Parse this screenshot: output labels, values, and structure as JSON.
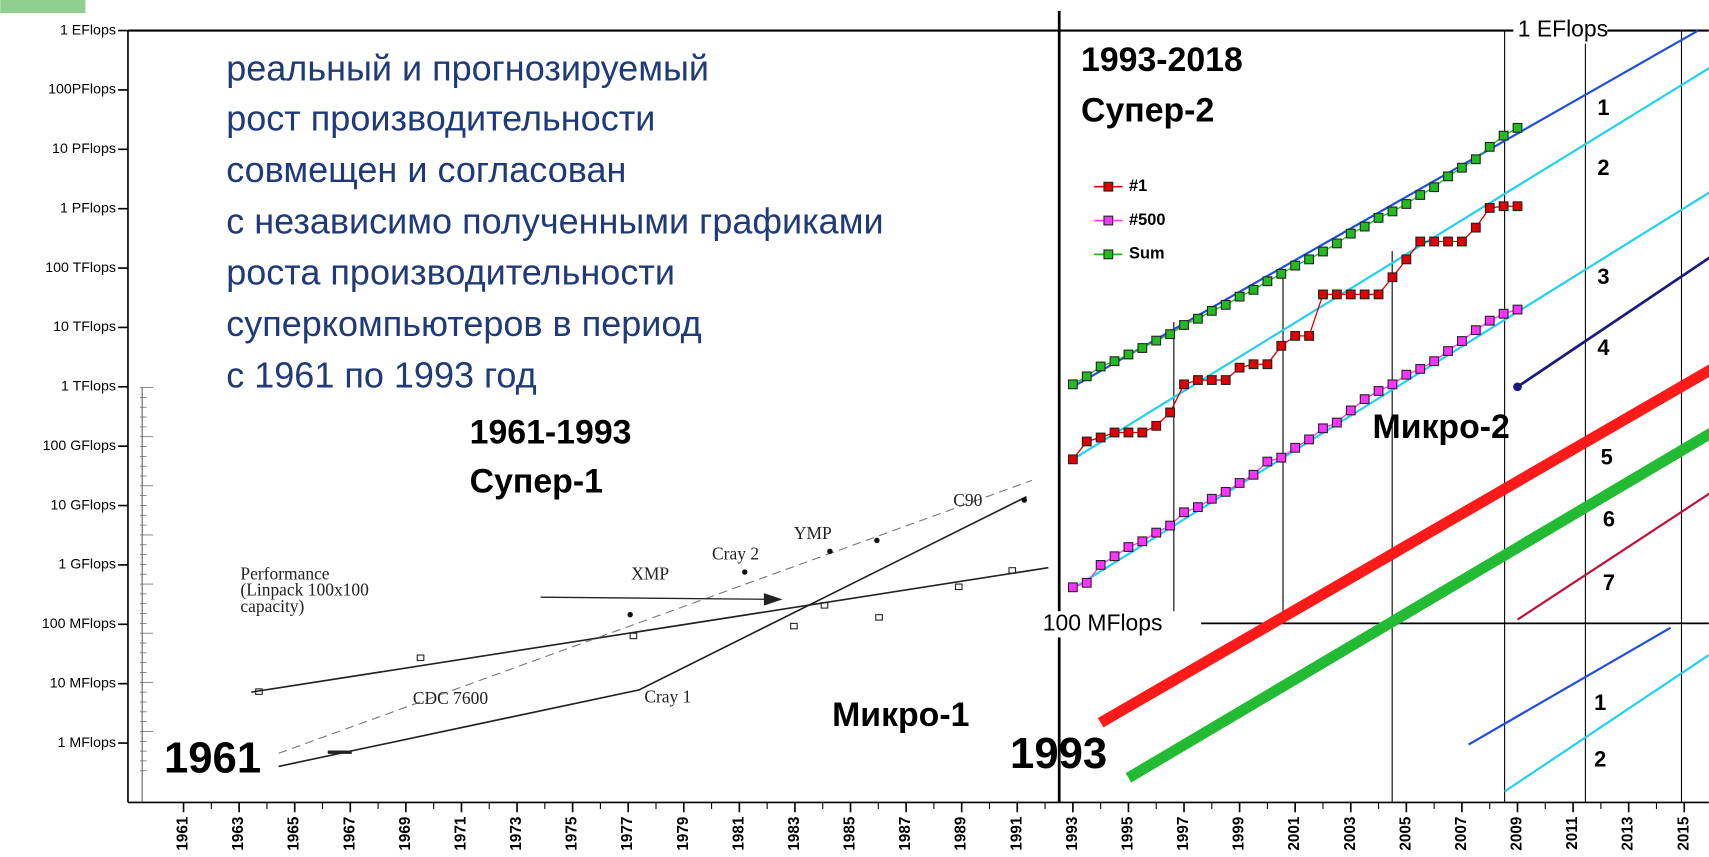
{
  "chart_data": {
    "type": "line",
    "log_y": true,
    "xlim": [
      1959,
      2016
    ],
    "ylim": [
      100000.0,
      1e+18
    ],
    "xticks": [
      1961,
      1963,
      1965,
      1967,
      1969,
      1971,
      1973,
      1975,
      1977,
      1979,
      1981,
      1983,
      1985,
      1987,
      1989,
      1991,
      1993,
      1995,
      1997,
      1999,
      2001,
      2003,
      2005,
      2007,
      2009,
      2011,
      2013,
      2015
    ],
    "yticks": [
      {
        "value": 1e+18,
        "label": "1 EFlops"
      },
      {
        "value": 1e+17,
        "label": "100PFlops"
      },
      {
        "value": 1e+16,
        "label": "10 PFlops"
      },
      {
        "value": 1000000000000000.0,
        "label": "1 PFlops"
      },
      {
        "value": 100000000000000.0,
        "label": "100 TFlops"
      },
      {
        "value": 10000000000000.0,
        "label": "10 TFlops"
      },
      {
        "value": 1000000000000.0,
        "label": "1 TFlops"
      },
      {
        "value": 100000000000.0,
        "label": "100 GFlops"
      },
      {
        "value": 10000000000.0,
        "label": "10 GFlops"
      },
      {
        "value": 1000000000.0,
        "label": "1 GFlops"
      },
      {
        "value": 100000000.0,
        "label": "100 MFlops"
      },
      {
        "value": 10000000.0,
        "label": "10 MFlops"
      },
      {
        "value": 1000000.0,
        "label": "1 MFlops"
      }
    ],
    "right_labels": [
      {
        "value": 1e+18,
        "label": "1 EFlops"
      },
      {
        "value": 100000000.0,
        "label": "100 MFlops"
      }
    ],
    "note": [
      "реальный и прогнозируемый",
      "рост производительности",
      "совмещен и согласован",
      "с независимо полученными графиками",
      "роста производительности",
      "суперкомпьютеров в период",
      "с 1961 по 1993 год"
    ],
    "period_left": [
      "1961-1993",
      "Супер-1"
    ],
    "period_right": [
      "1993-2018",
      "Супер-2"
    ],
    "micro_left": "Микро-1",
    "micro_right": "Микро-2",
    "start_left": "1961",
    "start_right": "1993",
    "old_chart_labels": {
      "performance": [
        "Performance",
        "(Linpack 100x100",
        "capacity)"
      ],
      "machines": [
        "CDC 7600",
        "Cray 1",
        "XMP",
        "Cray 2",
        "YMP",
        "C90"
      ]
    },
    "x": [
      1993,
      1993.5,
      1994,
      1994.5,
      1995,
      1995.5,
      1996,
      1996.5,
      1997,
      1997.5,
      1998,
      1998.5,
      1999,
      1999.5,
      2000,
      2000.5,
      2001,
      2001.5,
      2002,
      2002.5,
      2003,
      2003.5,
      2004,
      2004.5,
      2005,
      2005.5,
      2006,
      2006.5,
      2007,
      2007.5,
      2008,
      2008.5,
      2009
    ],
    "series": [
      {
        "name": "#1",
        "color": "#e00000",
        "values": [
          60000000000.0,
          120000000000.0,
          140000000000.0,
          170000000000.0,
          170000000000.0,
          170000000000.0,
          220000000000.0,
          370000000000.0,
          1100000000000.0,
          1300000000000.0,
          1300000000000.0,
          1300000000000.0,
          2100000000000.0,
          2400000000000.0,
          2400000000000.0,
          4900000000000.0,
          7200000000000.0,
          7200000000000.0,
          36000000000000.0,
          36000000000000.0,
          36000000000000.0,
          36000000000000.0,
          36000000000000.0,
          70000000000000.0,
          140000000000000.0,
          280000000000000.0,
          280000000000000.0,
          280000000000000.0,
          280000000000000.0,
          480000000000000.0,
          1030000000000000.0,
          1100000000000000.0,
          1100000000000000.0
        ]
      },
      {
        "name": "#500",
        "color": "#ff33ff",
        "values": [
          420000000.0,
          500000000.0,
          1000000000.0,
          1400000000.0,
          2000000000.0,
          2500000000.0,
          3500000000.0,
          4600000000.0,
          7700000000.0,
          9400000000.0,
          13000000000.0,
          17000000000.0,
          24000000000.0,
          33000000000.0,
          55000000000.0,
          64000000000.0,
          94000000000.0,
          130000000000.0,
          200000000000.0,
          250000000000.0,
          400000000000.0,
          620000000000.0,
          850000000000.0,
          1100000000000.0,
          1600000000000.0,
          2000000000000.0,
          2700000000000.0,
          4000000000000.0,
          5900000000000.0,
          9000000000000.0,
          13000000000000.0,
          17000000000000.0,
          20000000000000.0
        ]
      },
      {
        "name": "Sum",
        "color": "#22bb22",
        "values": [
          1100000000000.0,
          1500000000000.0,
          2200000000000.0,
          2700000000000.0,
          3500000000000.0,
          4500000000000.0,
          6000000000000.0,
          7700000000000.0,
          11000000000000.0,
          14000000000000.0,
          19000000000000.0,
          24000000000000.0,
          33000000000000.0,
          43000000000000.0,
          60000000000000.0,
          80000000000000.0,
          110000000000000.0,
          140000000000000.0,
          190000000000000.0,
          260000000000000.0,
          380000000000000.0,
          500000000000000.0,
          700000000000000.0,
          900000000000000.0,
          1200000000000000.0,
          1700000000000000.0,
          2300000000000000.0,
          3500000000000000.0,
          4900000000000000.0,
          6800000000000000.0,
          1.1e+16,
          1.7e+16,
          2.3e+16
        ]
      }
    ],
    "trend_lines": [
      {
        "label": "1",
        "color": "#1f4fd8",
        "width": 2,
        "x": [
          1993,
          2015.5
        ],
        "values": [
          1000000000000.0,
          1e+18
        ]
      },
      {
        "label": "2",
        "color": "#22d0f0",
        "width": 2,
        "x": [
          1993,
          2016
        ],
        "values": [
          60000000000.0,
          2.5e+17
        ]
      },
      {
        "label": "3",
        "color": "#22d0f0",
        "width": 2,
        "x": [
          1993,
          2016
        ],
        "values": [
          400000000.0,
          2000000000000000.0
        ]
      },
      {
        "label": "4",
        "color": "#1a1a7a",
        "width": 2.5,
        "x": [
          2009,
          2016
        ],
        "values": [
          1000000000000.0,
          160000000000000.0
        ]
      },
      {
        "label": "5",
        "color": "#ff1a1a",
        "width": 10,
        "x": [
          1994,
          2016
        ],
        "values": [
          2200000.0,
          2000000000000.0
        ]
      },
      {
        "label": "6",
        "color": "#22bb33",
        "width": 10,
        "x": [
          1995,
          2016
        ],
        "values": [
          260000.0,
          170000000000.0
        ]
      },
      {
        "label": "7",
        "color": "#c0103a",
        "width": 2,
        "x": [
          2009,
          2016
        ],
        "values": [
          120000000.0,
          17000000000.0
        ]
      }
    ],
    "lower_labels": [
      "1",
      "2"
    ]
  }
}
